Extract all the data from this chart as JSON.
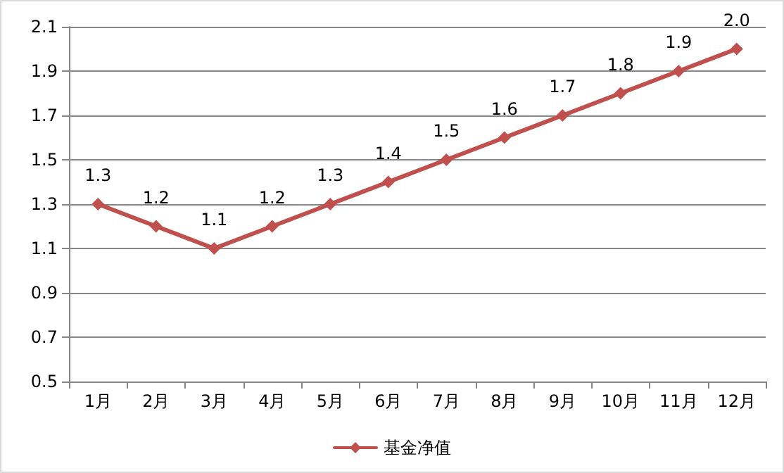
{
  "chart_data": {
    "type": "line",
    "categories": [
      "1月",
      "2月",
      "3月",
      "4月",
      "5月",
      "6月",
      "7月",
      "8月",
      "9月",
      "10月",
      "11月",
      "12月"
    ],
    "series": [
      {
        "name": "基金净值",
        "color": "#c0504d",
        "values": [
          1.3,
          1.2,
          1.1,
          1.2,
          1.3,
          1.4,
          1.5,
          1.6,
          1.7,
          1.8,
          1.9,
          2.0
        ],
        "value_labels": [
          "1.3",
          "1.2",
          "1.1",
          "1.2",
          "1.3",
          "1.4",
          "1.5",
          "1.6",
          "1.7",
          "1.8",
          "1.9",
          "2.0"
        ]
      }
    ],
    "ylim": [
      0.5,
      2.1
    ],
    "yticks": [
      0.5,
      0.7,
      0.9,
      1.1,
      1.3,
      1.5,
      1.7,
      1.9,
      2.1
    ],
    "grid": "y",
    "legend": "bottom",
    "marker": "diamond",
    "line_style": "solid"
  }
}
